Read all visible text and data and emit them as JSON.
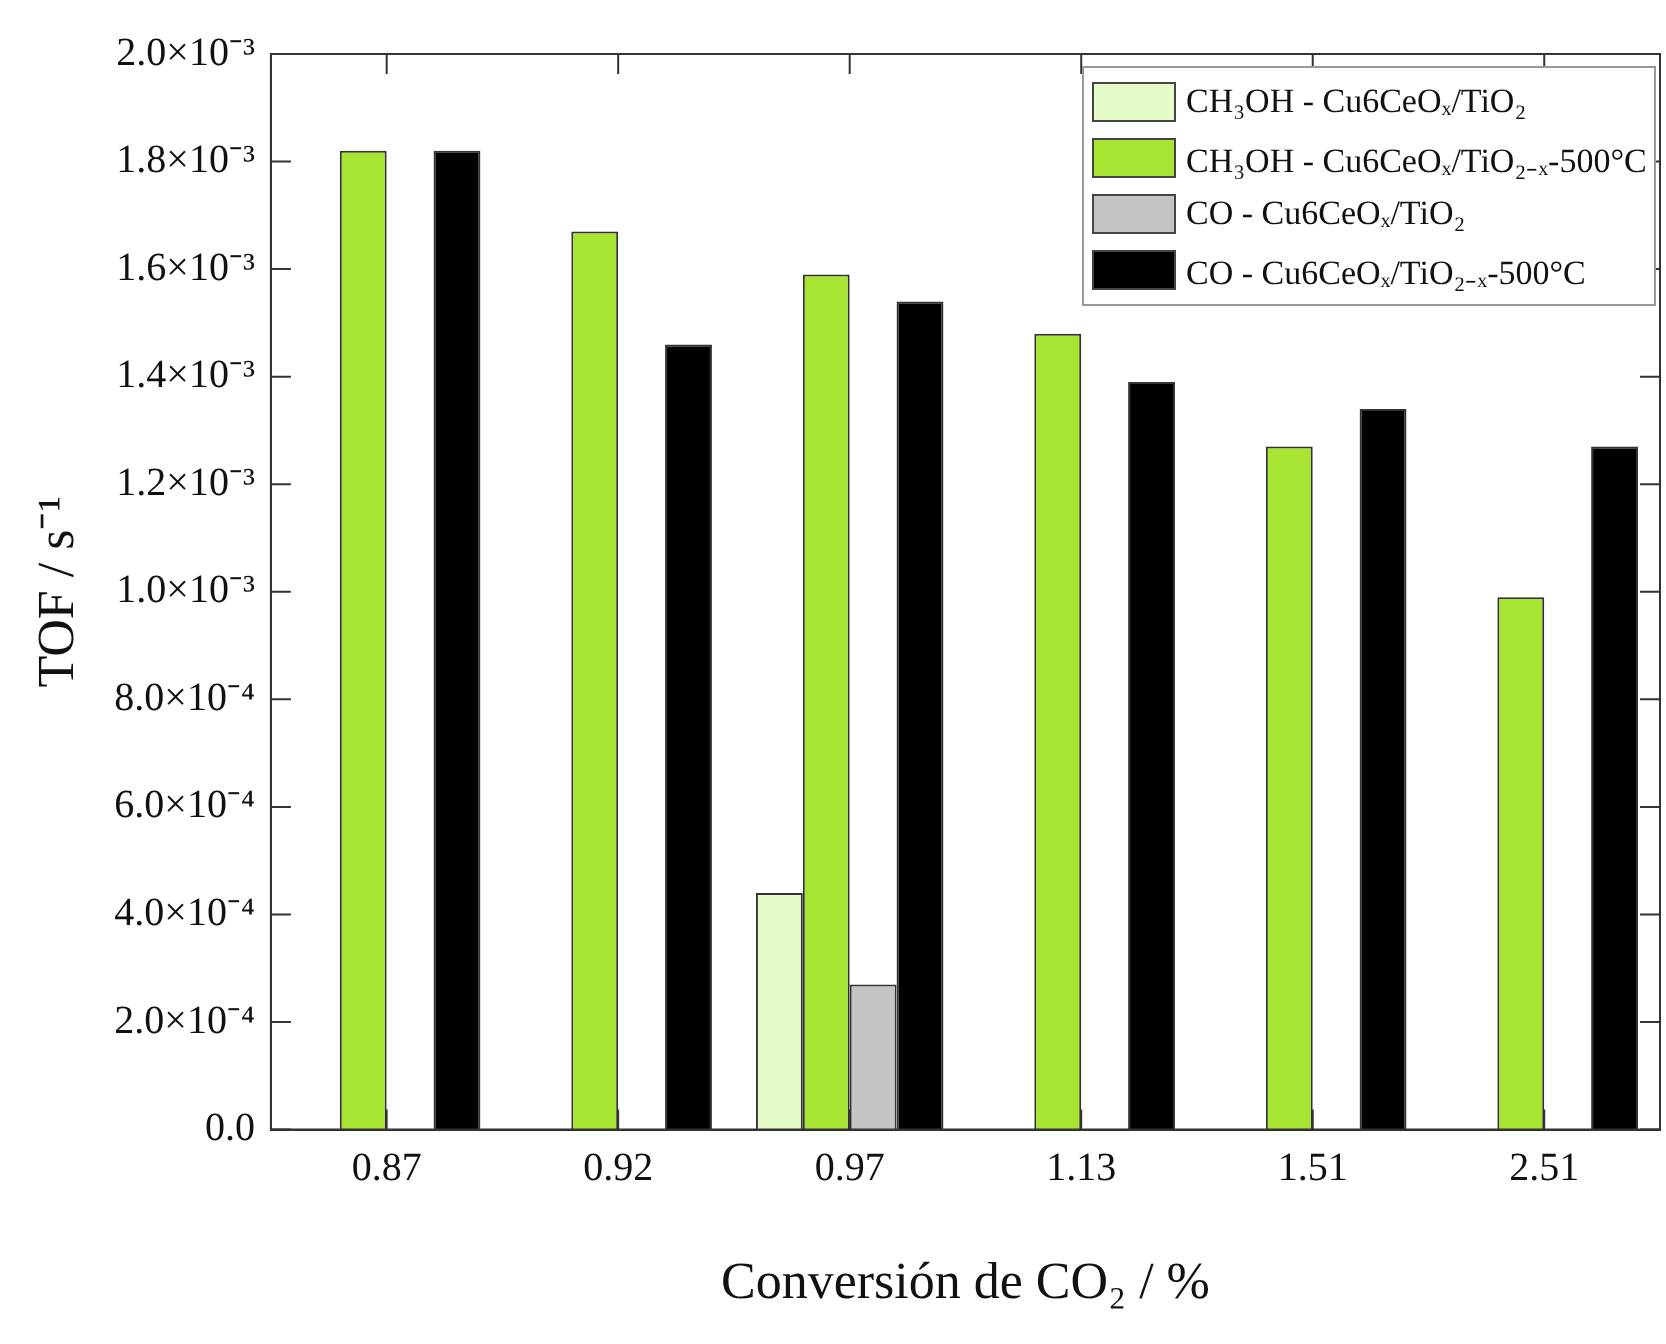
{
  "chart_data": {
    "type": "bar",
    "xlabel": "Conversión de CO₂ / %",
    "ylabel": "TOF / s⁻¹",
    "categories": [
      "0.87",
      "0.92",
      "0.97",
      "1.13",
      "1.51",
      "2.51"
    ],
    "series": [
      {
        "name": "CH₃OH - Cu6CeOₓ/TiO₂",
        "color": "#e5fbc8",
        "values": [
          null,
          null,
          0.00044,
          null,
          null,
          null
        ]
      },
      {
        "name": "CH₃OH - Cu6CeOₓ/TiO₂₋ₓ-500°C",
        "color": "#a8e533",
        "values": [
          0.00182,
          0.00167,
          0.00159,
          0.00148,
          0.00127,
          0.00099
        ]
      },
      {
        "name": "CO - Cu6CeOₓ/TiO₂",
        "color": "#c4c4c4",
        "values": [
          null,
          null,
          0.00027,
          null,
          null,
          null
        ]
      },
      {
        "name": "CO - Cu6CeOₓ/TiO₂₋ₓ-500°C",
        "color": "#000000",
        "values": [
          0.00182,
          0.00146,
          0.00154,
          0.00139,
          0.00134,
          0.00127
        ]
      }
    ],
    "ylim": [
      0,
      0.002
    ],
    "yticks": [
      {
        "value": 0,
        "label": "0.0"
      },
      {
        "value": 0.0002,
        "label": "2.0×10⁻⁴"
      },
      {
        "value": 0.0004,
        "label": "4.0×10⁻⁴"
      },
      {
        "value": 0.0006,
        "label": "6.0×10⁻⁴"
      },
      {
        "value": 0.0008,
        "label": "8.0×10⁻⁴"
      },
      {
        "value": 0.001,
        "label": "1.0×10⁻³"
      },
      {
        "value": 0.0012,
        "label": "1.2×10⁻³"
      },
      {
        "value": 0.0014,
        "label": "1.4×10⁻³"
      },
      {
        "value": 0.0016,
        "label": "1.6×10⁻³"
      },
      {
        "value": 0.0018,
        "label": "1.8×10⁻³"
      },
      {
        "value": 0.002,
        "label": "2.0×10⁻³"
      }
    ],
    "grid": false,
    "legend": "top right"
  }
}
